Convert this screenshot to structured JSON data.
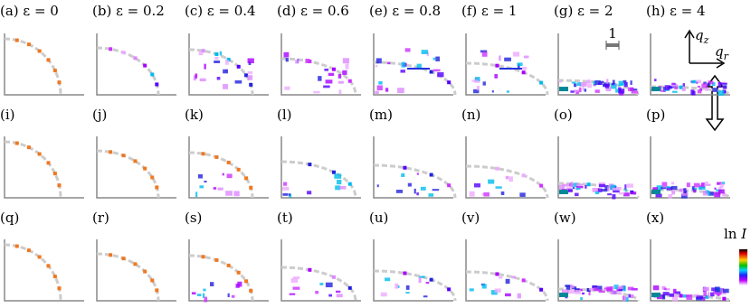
{
  "panels": [
    {
      "label": "(a) ε = 0"
    },
    {
      "label": "(b) ε = 0.2"
    },
    {
      "label": "(c) ε = 0.4"
    },
    {
      "label": "(d) ε = 0.6"
    },
    {
      "label": "(e) ε = 0.8"
    },
    {
      "label": "(f) ε = 1"
    },
    {
      "label": "(g) ε = 2"
    },
    {
      "label": "(h) ε = 4"
    },
    {
      "label": "(i)"
    },
    {
      "label": "(j)"
    },
    {
      "label": "(k)"
    },
    {
      "label": "(l)"
    },
    {
      "label": "(m)"
    },
    {
      "label": "(n)"
    },
    {
      "label": "(o)"
    },
    {
      "label": "(p)"
    },
    {
      "label": "(q)"
    },
    {
      "label": "(r)"
    },
    {
      "label": "(s)"
    },
    {
      "label": "(t)"
    },
    {
      "label": "(u)"
    },
    {
      "label": "(v)"
    },
    {
      "label": "(w)"
    },
    {
      "label": "(x)"
    }
  ],
  "scale_bar": "1",
  "axes": {
    "vertical": "q",
    "vertical_sub": "z",
    "horizontal": "q",
    "horizontal_sub": "r"
  },
  "colorbar": {
    "label_main": "ln ",
    "label_italic": "I"
  }
}
